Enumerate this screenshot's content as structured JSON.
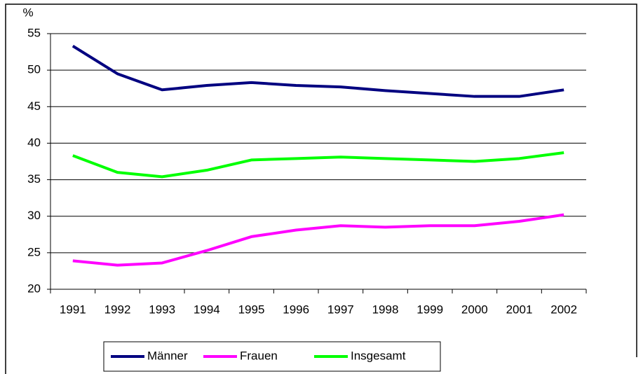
{
  "chart_data": {
    "type": "line",
    "y_label": "%",
    "categories": [
      "1991",
      "1992",
      "1993",
      "1994",
      "1995",
      "1996",
      "1997",
      "1998",
      "1999",
      "2000",
      "2001",
      "2002"
    ],
    "series": [
      {
        "name": "Männer",
        "color": "#000080",
        "values": [
          53.3,
          49.5,
          47.3,
          47.9,
          48.3,
          47.9,
          47.7,
          47.2,
          46.8,
          46.4,
          46.4,
          47.3
        ]
      },
      {
        "name": "Frauen",
        "color": "#ff00ff",
        "values": [
          23.9,
          23.3,
          23.6,
          25.3,
          27.2,
          28.1,
          28.7,
          28.5,
          28.7,
          28.7,
          29.3,
          30.2
        ]
      },
      {
        "name": "Insgesamt",
        "color": "#00ff00",
        "values": [
          38.3,
          36.0,
          35.4,
          36.3,
          37.7,
          37.9,
          38.1,
          37.9,
          37.7,
          37.5,
          37.9,
          38.7
        ]
      }
    ],
    "ylim": [
      20,
      55
    ],
    "yticks": [
      20,
      25,
      30,
      35,
      40,
      45,
      50,
      55
    ],
    "grid": true,
    "legend": "bottom"
  }
}
